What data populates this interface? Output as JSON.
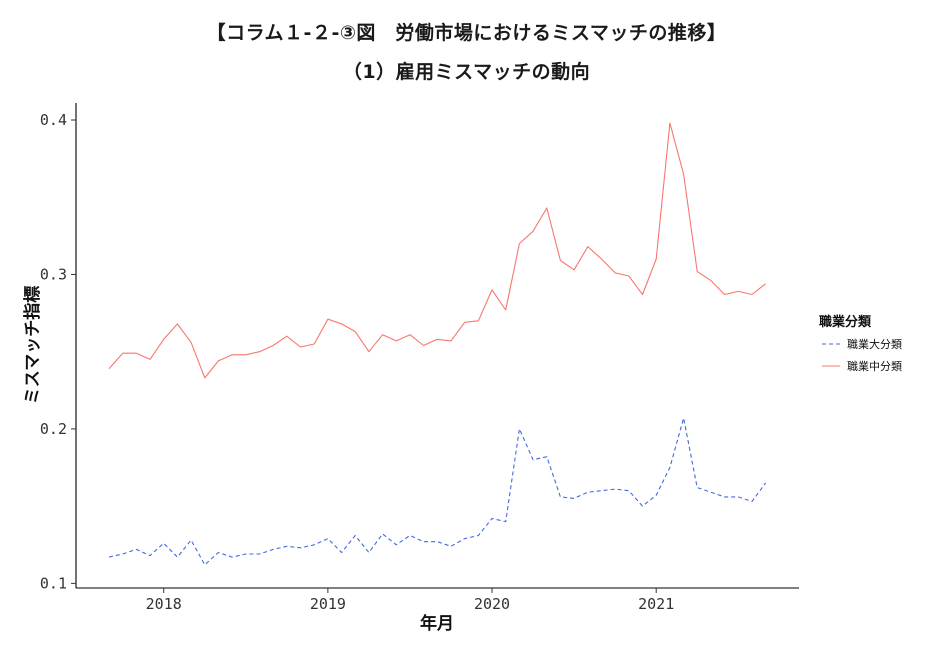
{
  "chart_data": {
    "type": "line",
    "title": "【コラム１-２-③図　労働市場におけるミスマッチの推移】",
    "subtitle": "（1）雇用ミスマッチの動向",
    "xlabel": "年月",
    "ylabel": "ミスマッチ指標",
    "x_start": "2017-09",
    "x": [
      "2017-09",
      "2017-10",
      "2017-11",
      "2017-12",
      "2018-01",
      "2018-02",
      "2018-03",
      "2018-04",
      "2018-05",
      "2018-06",
      "2018-07",
      "2018-08",
      "2018-09",
      "2018-10",
      "2018-11",
      "2018-12",
      "2019-01",
      "2019-02",
      "2019-03",
      "2019-04",
      "2019-05",
      "2019-06",
      "2019-07",
      "2019-08",
      "2019-09",
      "2019-10",
      "2019-11",
      "2019-12",
      "2020-01",
      "2020-02",
      "2020-03",
      "2020-04",
      "2020-05",
      "2020-06",
      "2020-07",
      "2020-08",
      "2020-09",
      "2020-10",
      "2020-11",
      "2020-12",
      "2021-01",
      "2021-02",
      "2021-03",
      "2021-04",
      "2021-05",
      "2021-06",
      "2021-07",
      "2021-08",
      "2021-09"
    ],
    "x_ticks": [
      "2018",
      "2019",
      "2020",
      "2021"
    ],
    "ylim": [
      0.097,
      0.411
    ],
    "y_ticks": [
      "0.1",
      "0.2",
      "0.3",
      "0.4"
    ],
    "grid": false,
    "legend_position": "right",
    "legend_title": "職業分類",
    "series": [
      {
        "name": "職業大分類",
        "color": "#4169e1",
        "dash": "dashed",
        "values": [
          0.117,
          0.119,
          0.122,
          0.118,
          0.126,
          0.117,
          0.128,
          0.112,
          0.12,
          0.117,
          0.119,
          0.119,
          0.122,
          0.124,
          0.123,
          0.125,
          0.129,
          0.12,
          0.131,
          0.12,
          0.132,
          0.125,
          0.131,
          0.127,
          0.127,
          0.124,
          0.129,
          0.131,
          0.142,
          0.14,
          0.2,
          0.18,
          0.182,
          0.156,
          0.155,
          0.159,
          0.16,
          0.161,
          0.16,
          0.15,
          0.157,
          0.175,
          0.207,
          0.162,
          0.159,
          0.156,
          0.156,
          0.153,
          0.165
        ]
      },
      {
        "name": "職業中分類",
        "color": "#f8766d",
        "dash": "solid",
        "values": [
          0.239,
          0.249,
          0.249,
          0.245,
          0.258,
          0.268,
          0.256,
          0.233,
          0.244,
          0.248,
          0.248,
          0.25,
          0.254,
          0.26,
          0.253,
          0.255,
          0.271,
          0.268,
          0.263,
          0.25,
          0.261,
          0.257,
          0.261,
          0.254,
          0.258,
          0.257,
          0.269,
          0.27,
          0.29,
          0.277,
          0.32,
          0.328,
          0.343,
          0.309,
          0.303,
          0.318,
          0.31,
          0.301,
          0.299,
          0.287,
          0.31,
          0.398,
          0.365,
          0.302,
          0.296,
          0.287,
          0.289,
          0.287,
          0.294
        ]
      }
    ]
  }
}
